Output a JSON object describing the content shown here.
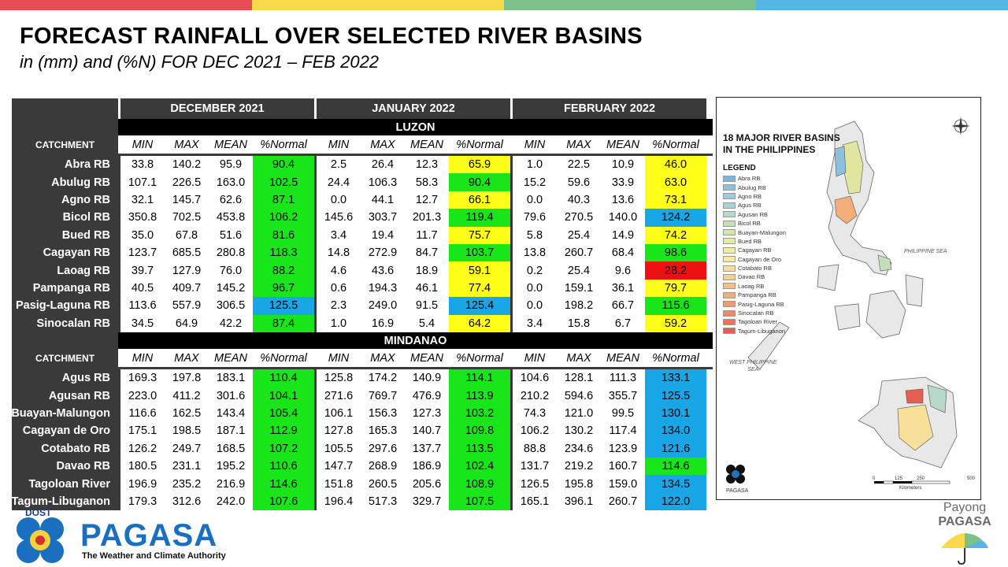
{
  "header": {
    "title": "FORECAST RAINFALL OVER SELECTED RIVER BASINS",
    "subtitle": "in (mm) and (%N) FOR DEC 2021 – FEB 2022"
  },
  "colors": {
    "top_bar": [
      "#e94b54",
      "#f9d94a",
      "#7cc08a",
      "#56b5e3"
    ],
    "green": "#19e619",
    "yellow": "#ffff19",
    "blue": "#19a6e6",
    "red": "#ee1111"
  },
  "table": {
    "months": [
      "DECEMBER 2021",
      "JANUARY 2022",
      "FEBRUARY 2022"
    ],
    "catchment_label": "CATCHMENT",
    "col_headers": [
      "MIN",
      "MAX",
      "MEAN",
      "%Normal"
    ],
    "regions": [
      {
        "name": "LUZON",
        "rows": [
          {
            "name": "Abra RB",
            "vals": [
              [
                "33.8",
                "140.2",
                "95.9",
                "90.4"
              ],
              [
                "2.5",
                "26.4",
                "12.3",
                "65.9"
              ],
              [
                "1.0",
                "22.5",
                "10.9",
                "46.0"
              ]
            ],
            "colors": [
              "g",
              "y",
              "y"
            ]
          },
          {
            "name": "Abulug RB",
            "vals": [
              [
                "107.1",
                "226.5",
                "163.0",
                "102.5"
              ],
              [
                "24.4",
                "106.3",
                "58.3",
                "90.4"
              ],
              [
                "15.2",
                "59.6",
                "33.9",
                "63.0"
              ]
            ],
            "colors": [
              "g",
              "g",
              "y"
            ]
          },
          {
            "name": "Agno RB",
            "vals": [
              [
                "32.1",
                "145.7",
                "62.6",
                "87.1"
              ],
              [
                "0.0",
                "44.1",
                "12.7",
                "66.1"
              ],
              [
                "0.0",
                "40.3",
                "13.6",
                "73.1"
              ]
            ],
            "colors": [
              "g",
              "y",
              "y"
            ]
          },
          {
            "name": "Bicol RB",
            "vals": [
              [
                "350.8",
                "702.5",
                "453.8",
                "106.2"
              ],
              [
                "145.6",
                "303.7",
                "201.3",
                "119.4"
              ],
              [
                "79.6",
                "270.5",
                "140.0",
                "124.2"
              ]
            ],
            "colors": [
              "g",
              "g",
              "b"
            ]
          },
          {
            "name": "Bued RB",
            "vals": [
              [
                "35.0",
                "67.8",
                "51.6",
                "81.6"
              ],
              [
                "3.4",
                "19.4",
                "11.7",
                "75.7"
              ],
              [
                "5.8",
                "25.4",
                "14.9",
                "74.2"
              ]
            ],
            "colors": [
              "g",
              "y",
              "y"
            ]
          },
          {
            "name": "Cagayan RB",
            "vals": [
              [
                "123.7",
                "685.5",
                "280.8",
                "118.3"
              ],
              [
                "14.8",
                "272.9",
                "84.7",
                "103.7"
              ],
              [
                "13.8",
                "260.7",
                "68.4",
                "98.6"
              ]
            ],
            "colors": [
              "g",
              "g",
              "g"
            ]
          },
          {
            "name": "Laoag RB",
            "vals": [
              [
                "39.7",
                "127.9",
                "76.0",
                "88.2"
              ],
              [
                "4.6",
                "43.6",
                "18.9",
                "59.1"
              ],
              [
                "0.2",
                "25.4",
                "9.6",
                "28.2"
              ]
            ],
            "colors": [
              "g",
              "y",
              "r"
            ]
          },
          {
            "name": "Pampanga RB",
            "vals": [
              [
                "40.5",
                "409.7",
                "145.2",
                "96.7"
              ],
              [
                "0.6",
                "194.3",
                "46.1",
                "77.4"
              ],
              [
                "0.0",
                "159.1",
                "36.1",
                "79.7"
              ]
            ],
            "colors": [
              "g",
              "y",
              "y"
            ]
          },
          {
            "name": "Pasig-Laguna RB",
            "vals": [
              [
                "113.6",
                "557.9",
                "306.5",
                "125.5"
              ],
              [
                "2.3",
                "249.0",
                "91.5",
                "125.4"
              ],
              [
                "0.0",
                "198.2",
                "66.7",
                "115.6"
              ]
            ],
            "colors": [
              "b",
              "b",
              "g"
            ]
          },
          {
            "name": "Sinocalan RB",
            "vals": [
              [
                "34.5",
                "64.9",
                "42.2",
                "87.4"
              ],
              [
                "1.0",
                "16.9",
                "5.4",
                "64.2"
              ],
              [
                "3.4",
                "15.8",
                "6.7",
                "59.2"
              ]
            ],
            "colors": [
              "g",
              "y",
              "y"
            ]
          }
        ]
      },
      {
        "name": "MINDANAO",
        "rows": [
          {
            "name": "Agus RB",
            "vals": [
              [
                "169.3",
                "197.8",
                "183.1",
                "110.4"
              ],
              [
                "125.8",
                "174.2",
                "140.9",
                "114.1"
              ],
              [
                "104.6",
                "128.1",
                "111.3",
                "133.1"
              ]
            ],
            "colors": [
              "g",
              "g",
              "b"
            ]
          },
          {
            "name": "Agusan RB",
            "vals": [
              [
                "223.0",
                "411.2",
                "301.6",
                "104.1"
              ],
              [
                "271.6",
                "769.7",
                "476.9",
                "113.9"
              ],
              [
                "210.2",
                "594.6",
                "355.7",
                "125.5"
              ]
            ],
            "colors": [
              "g",
              "g",
              "b"
            ]
          },
          {
            "name": "Buayan-Malungon",
            "vals": [
              [
                "116.6",
                "162.5",
                "143.4",
                "105.4"
              ],
              [
                "106.1",
                "156.3",
                "127.3",
                "103.2"
              ],
              [
                "74.3",
                "121.0",
                "99.5",
                "130.1"
              ]
            ],
            "colors": [
              "g",
              "g",
              "b"
            ]
          },
          {
            "name": "Cagayan de Oro",
            "vals": [
              [
                "175.1",
                "198.5",
                "187.1",
                "112.9"
              ],
              [
                "127.8",
                "165.3",
                "140.7",
                "109.8"
              ],
              [
                "106.2",
                "130.2",
                "117.4",
                "134.0"
              ]
            ],
            "colors": [
              "g",
              "g",
              "b"
            ]
          },
          {
            "name": "Cotabato RB",
            "vals": [
              [
                "126.2",
                "249.7",
                "168.5",
                "107.2"
              ],
              [
                "105.5",
                "297.6",
                "137.7",
                "113.5"
              ],
              [
                "88.8",
                "234.6",
                "123.9",
                "121.6"
              ]
            ],
            "colors": [
              "g",
              "g",
              "b"
            ]
          },
          {
            "name": "Davao RB",
            "vals": [
              [
                "180.5",
                "231.1",
                "195.2",
                "110.6"
              ],
              [
                "147.7",
                "268.9",
                "186.9",
                "102.4"
              ],
              [
                "131.7",
                "219.2",
                "160.7",
                "114.6"
              ]
            ],
            "colors": [
              "g",
              "g",
              "g"
            ]
          },
          {
            "name": "Tagoloan River",
            "vals": [
              [
                "196.9",
                "235.2",
                "216.9",
                "114.6"
              ],
              [
                "151.8",
                "260.5",
                "205.6",
                "108.9"
              ],
              [
                "126.5",
                "195.8",
                "159.0",
                "134.5"
              ]
            ],
            "colors": [
              "g",
              "g",
              "b"
            ]
          },
          {
            "name": "Tagum-Libuganon",
            "vals": [
              [
                "179.3",
                "312.6",
                "242.0",
                "107.6"
              ],
              [
                "196.4",
                "517.3",
                "329.7",
                "107.5"
              ],
              [
                "165.1",
                "396.1",
                "260.7",
                "122.0"
              ]
            ],
            "colors": [
              "g",
              "g",
              "b"
            ]
          }
        ]
      }
    ]
  },
  "map": {
    "title_l1": "18 MAJOR RIVER BASINS",
    "title_l2": "IN THE PHILIPPINES",
    "legend_title": "LEGEND",
    "legend": [
      {
        "label": "Abra RB",
        "color": "#7fb6d8"
      },
      {
        "label": "Abulug RB",
        "color": "#8cc0dc"
      },
      {
        "label": "Agno RB",
        "color": "#9fcbe0"
      },
      {
        "label": "Agus RB",
        "color": "#a9d1d6"
      },
      {
        "label": "Agusan RB",
        "color": "#b6d8c6"
      },
      {
        "label": "Bicol RB",
        "color": "#c3dfb8"
      },
      {
        "label": "Buayan-Malungon",
        "color": "#d2e6ab"
      },
      {
        "label": "Bued RB",
        "color": "#e0ec9e"
      },
      {
        "label": "Cagayan RB",
        "color": "#eef19a"
      },
      {
        "label": "Cagayan de Oro",
        "color": "#f6ec9c"
      },
      {
        "label": "Cotabato RB",
        "color": "#f7e09a"
      },
      {
        "label": "Davao RB",
        "color": "#f6d092"
      },
      {
        "label": "Laoag RB",
        "color": "#f4bf86"
      },
      {
        "label": "Pampanga RB",
        "color": "#f2ad7a"
      },
      {
        "label": "Pasig-Laguna RB",
        "color": "#ef9b6e"
      },
      {
        "label": "Sinocalan RB",
        "color": "#ec8964"
      },
      {
        "label": "Tagoloan River",
        "color": "#e8745a"
      },
      {
        "label": "Tagum-Libuganon",
        "color": "#e45e52"
      }
    ],
    "sea_east": "PHILIPPINE SEA",
    "sea_west_l1": "WEST PHILIPPINE",
    "sea_west_l2": "SEA",
    "scale_ticks": [
      "0",
      "125",
      "250",
      "500"
    ],
    "scale_unit": "Kilometers",
    "logo_label": "PAGASA"
  },
  "footer": {
    "dost": "DOST",
    "brand": "PAGASA",
    "tagline": "The Weather and Climate Authority",
    "payong_l1": "Payong",
    "payong_l2": "PAGASA"
  }
}
